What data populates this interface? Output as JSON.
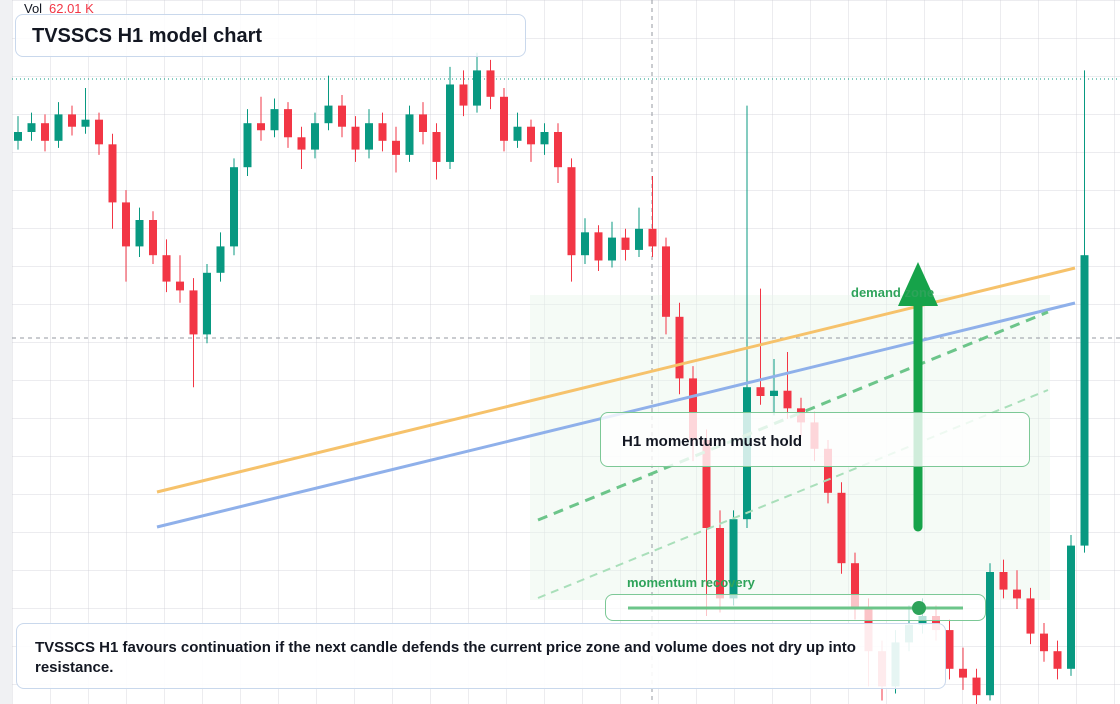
{
  "chart_data": {
    "type": "candlestick",
    "title": "TVSSCS H1 model chart",
    "volume_label": "Vol",
    "volume_value": "62.01 K",
    "note": "TVSSCS H1 favours continuation if the next candle defends the current price zone and volume does not dry up into resistance.",
    "annotations": [
      "demand zone",
      "H1 momentum must hold",
      "momentum recovery"
    ],
    "up_color": "#089981",
    "down_color": "#f23645",
    "ylim": [
      40,
      80
    ],
    "ohlc": [
      [
        72.0,
        73.4,
        71.5,
        72.5
      ],
      [
        72.5,
        73.6,
        72.0,
        73.0
      ],
      [
        73.0,
        73.5,
        71.4,
        72.0
      ],
      [
        72.0,
        74.2,
        71.6,
        73.5
      ],
      [
        73.5,
        74.0,
        72.3,
        72.8
      ],
      [
        72.8,
        75.0,
        72.4,
        73.2
      ],
      [
        73.2,
        73.6,
        71.2,
        71.8
      ],
      [
        71.8,
        72.4,
        67.0,
        68.5
      ],
      [
        68.5,
        69.2,
        64.0,
        66.0
      ],
      [
        66.0,
        68.2,
        65.4,
        67.5
      ],
      [
        67.5,
        68.0,
        65.0,
        65.5
      ],
      [
        65.5,
        66.4,
        63.4,
        64.0
      ],
      [
        64.0,
        65.5,
        62.8,
        63.5
      ],
      [
        63.5,
        64.2,
        58.0,
        61.0
      ],
      [
        61.0,
        65.0,
        60.5,
        64.5
      ],
      [
        64.5,
        66.8,
        64.0,
        66.0
      ],
      [
        66.0,
        71.0,
        65.5,
        70.5
      ],
      [
        70.5,
        73.8,
        70.0,
        73.0
      ],
      [
        73.0,
        74.5,
        72.0,
        72.6
      ],
      [
        72.6,
        74.4,
        72.2,
        73.8
      ],
      [
        73.8,
        74.2,
        71.6,
        72.2
      ],
      [
        72.2,
        72.8,
        70.4,
        71.5
      ],
      [
        71.5,
        73.6,
        71.0,
        73.0
      ],
      [
        73.0,
        75.7,
        72.6,
        74.0
      ],
      [
        74.0,
        74.6,
        72.2,
        72.8
      ],
      [
        72.8,
        73.4,
        70.8,
        71.5
      ],
      [
        71.5,
        73.8,
        71.0,
        73.0
      ],
      [
        73.0,
        73.6,
        71.4,
        72.0
      ],
      [
        72.0,
        72.8,
        70.2,
        71.2
      ],
      [
        71.2,
        74.0,
        70.8,
        73.5
      ],
      [
        73.5,
        74.2,
        71.8,
        72.5
      ],
      [
        72.5,
        73.0,
        69.8,
        70.8
      ],
      [
        70.8,
        76.2,
        70.4,
        75.2
      ],
      [
        75.2,
        76.0,
        73.4,
        74.0
      ],
      [
        74.0,
        77.0,
        73.6,
        76.0
      ],
      [
        76.0,
        76.6,
        73.8,
        74.5
      ],
      [
        74.5,
        75.0,
        71.4,
        72.0
      ],
      [
        72.0,
        73.6,
        71.6,
        72.8
      ],
      [
        72.8,
        73.2,
        70.8,
        71.8
      ],
      [
        71.8,
        73.0,
        71.2,
        72.5
      ],
      [
        72.5,
        73.0,
        69.6,
        70.5
      ],
      [
        70.5,
        71.0,
        64.0,
        65.5
      ],
      [
        65.5,
        67.6,
        65.0,
        66.8
      ],
      [
        66.8,
        67.2,
        64.6,
        65.2
      ],
      [
        65.2,
        67.4,
        64.8,
        66.5
      ],
      [
        66.5,
        67.0,
        65.2,
        65.8
      ],
      [
        65.8,
        68.2,
        65.4,
        67.0
      ],
      [
        67.0,
        70.0,
        65.4,
        66.0
      ],
      [
        66.0,
        66.5,
        61.0,
        62.0
      ],
      [
        62.0,
        62.8,
        57.6,
        58.5
      ],
      [
        58.5,
        59.2,
        53.8,
        55.0
      ],
      [
        55.0,
        55.6,
        45.0,
        50.0
      ],
      [
        50.0,
        51.0,
        45.2,
        46.0
      ],
      [
        46.0,
        51.0,
        45.6,
        50.5
      ],
      [
        50.5,
        74.0,
        50.0,
        58.0
      ],
      [
        58.0,
        63.6,
        57.0,
        57.5
      ],
      [
        57.5,
        59.6,
        56.4,
        57.8
      ],
      [
        57.8,
        60.0,
        56.2,
        56.8
      ],
      [
        56.8,
        57.4,
        55.2,
        56.0
      ],
      [
        56.0,
        56.6,
        53.8,
        54.5
      ],
      [
        54.5,
        55.0,
        51.4,
        52.0
      ],
      [
        52.0,
        52.6,
        47.4,
        48.0
      ],
      [
        48.0,
        48.6,
        44.8,
        45.5
      ],
      [
        45.5,
        46.0,
        41.0,
        43.0
      ],
      [
        43.0,
        43.6,
        40.2,
        41.0
      ],
      [
        41.0,
        44.2,
        40.6,
        43.5
      ],
      [
        43.5,
        45.6,
        43.0,
        44.5
      ],
      [
        44.5,
        46.0,
        44.0,
        45.0
      ],
      [
        45.0,
        45.6,
        43.6,
        44.2
      ],
      [
        44.2,
        44.8,
        41.4,
        42.0
      ],
      [
        42.0,
        43.2,
        40.8,
        41.5
      ],
      [
        41.5,
        42.0,
        40.0,
        40.5
      ],
      [
        40.5,
        48.0,
        40.2,
        47.5
      ],
      [
        47.5,
        48.2,
        46.0,
        46.5
      ],
      [
        46.5,
        47.6,
        45.4,
        46.0
      ],
      [
        46.0,
        46.6,
        43.4,
        44.0
      ],
      [
        44.0,
        44.6,
        42.4,
        43.0
      ],
      [
        43.0,
        43.6,
        41.4,
        42.0
      ],
      [
        42.0,
        49.6,
        41.6,
        49.0
      ],
      [
        49.0,
        76.0,
        48.6,
        65.5
      ]
    ]
  }
}
